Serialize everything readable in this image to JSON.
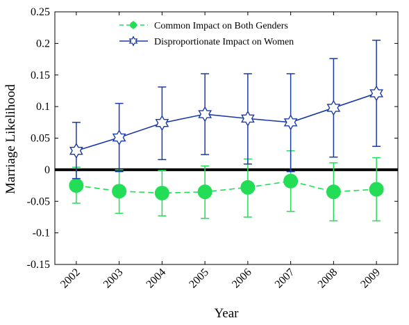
{
  "chart_data": {
    "type": "line",
    "xlabel": "Year",
    "ylabel": "Marriage Likelihood",
    "ylim": [
      -0.15,
      0.25
    ],
    "yticks": [
      -0.15,
      -0.1,
      -0.05,
      0,
      0.05,
      0.1,
      0.15,
      0.2,
      0.25
    ],
    "ytick_labels": [
      "-0.15",
      "-0.1",
      "-0.05",
      "0",
      "0.05",
      "0.1",
      "0.15",
      "0.2",
      "0.25"
    ],
    "categories": [
      "2002",
      "2003",
      "2004",
      "2005",
      "2006",
      "2007",
      "2008",
      "2009"
    ],
    "legend_position": "top-center",
    "zero_line": true,
    "series": [
      {
        "name": "Common Impact on Both Genders",
        "color": "#22dd55",
        "marker": "circle",
        "line_style": "dashed",
        "values": [
          -0.025,
          -0.034,
          -0.037,
          -0.035,
          -0.028,
          -0.018,
          -0.035,
          -0.031
        ],
        "lower": [
          -0.053,
          -0.069,
          -0.073,
          -0.077,
          -0.075,
          -0.066,
          -0.081,
          -0.081
        ],
        "upper": [
          0.004,
          0.0,
          -0.001,
          0.006,
          0.017,
          0.03,
          0.011,
          0.019
        ]
      },
      {
        "name": "Disproportionate Impact on Women",
        "color": "#1a3aaa",
        "marker": "star",
        "line_style": "solid",
        "values": [
          0.03,
          0.051,
          0.074,
          0.088,
          0.081,
          0.075,
          0.098,
          0.121
        ],
        "lower": [
          -0.014,
          -0.003,
          0.016,
          0.024,
          0.009,
          -0.003,
          0.02,
          0.037
        ],
        "upper": [
          0.075,
          0.105,
          0.131,
          0.152,
          0.152,
          0.152,
          0.176,
          0.205
        ]
      }
    ]
  }
}
